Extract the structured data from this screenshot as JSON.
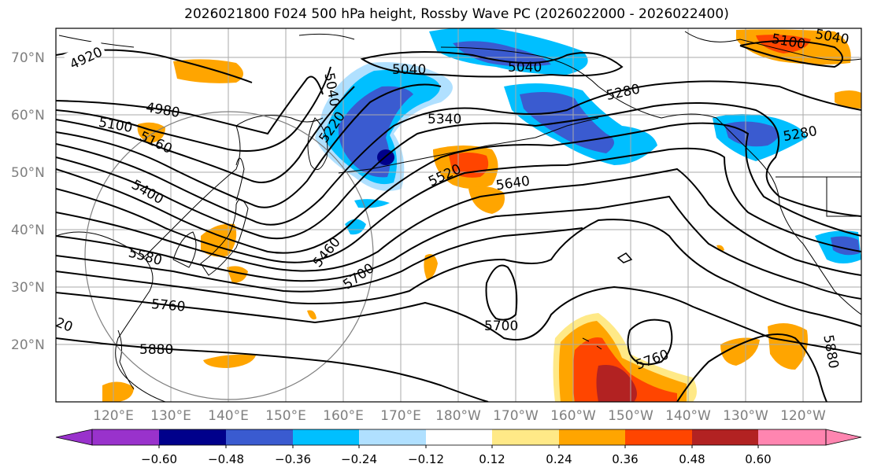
{
  "title": "2026021800 F024 500 hPa height, Rossby Wave PC (2026022000 - 2026022400)",
  "lat_labels": [
    "70°N",
    "60°N",
    "50°N",
    "40°N",
    "30°N",
    "20°N"
  ],
  "lon_labels": [
    "120°E",
    "130°E",
    "140°E",
    "150°E",
    "160°E",
    "170°E",
    "180°W",
    "170°W",
    "160°W",
    "150°W",
    "140°W",
    "130°W",
    "120°W"
  ],
  "contour_labels": [
    "4920",
    "5040",
    "5040",
    "5040",
    "5100",
    "5100",
    "5040",
    "4980",
    "5160",
    "5220",
    "5340",
    "5280",
    "5280",
    "5400",
    "5520",
    "5640",
    "5460",
    "5580",
    "5700",
    "5760",
    "5880",
    "5700",
    "5760",
    "5880",
    "20"
  ],
  "colorbar": {
    "ticks": [
      "−0.60",
      "−0.48",
      "−0.36",
      "−0.24",
      "−0.12",
      "0.12",
      "0.24",
      "0.36",
      "0.48",
      "0.60"
    ],
    "colors": [
      "#9932cc",
      "#00008b",
      "#3a5bd0",
      "#00bfff",
      "#b0e0ff",
      "#ffffff",
      "#ffe987",
      "#ffa500",
      "#ff4500",
      "#b22222",
      "#ff85b0"
    ]
  },
  "colors": {
    "strong_neg": "#00008b",
    "mid_neg": "#3a5bd0",
    "neg": "#00bfff",
    "weak_neg": "#b0e0ff",
    "weak_pos": "#ffe987",
    "pos": "#ffa500",
    "mid_pos": "#ff4500",
    "strong_pos": "#b22222",
    "contour": "#000000",
    "grid": "#aaaaaa",
    "coast": "#000000"
  }
}
